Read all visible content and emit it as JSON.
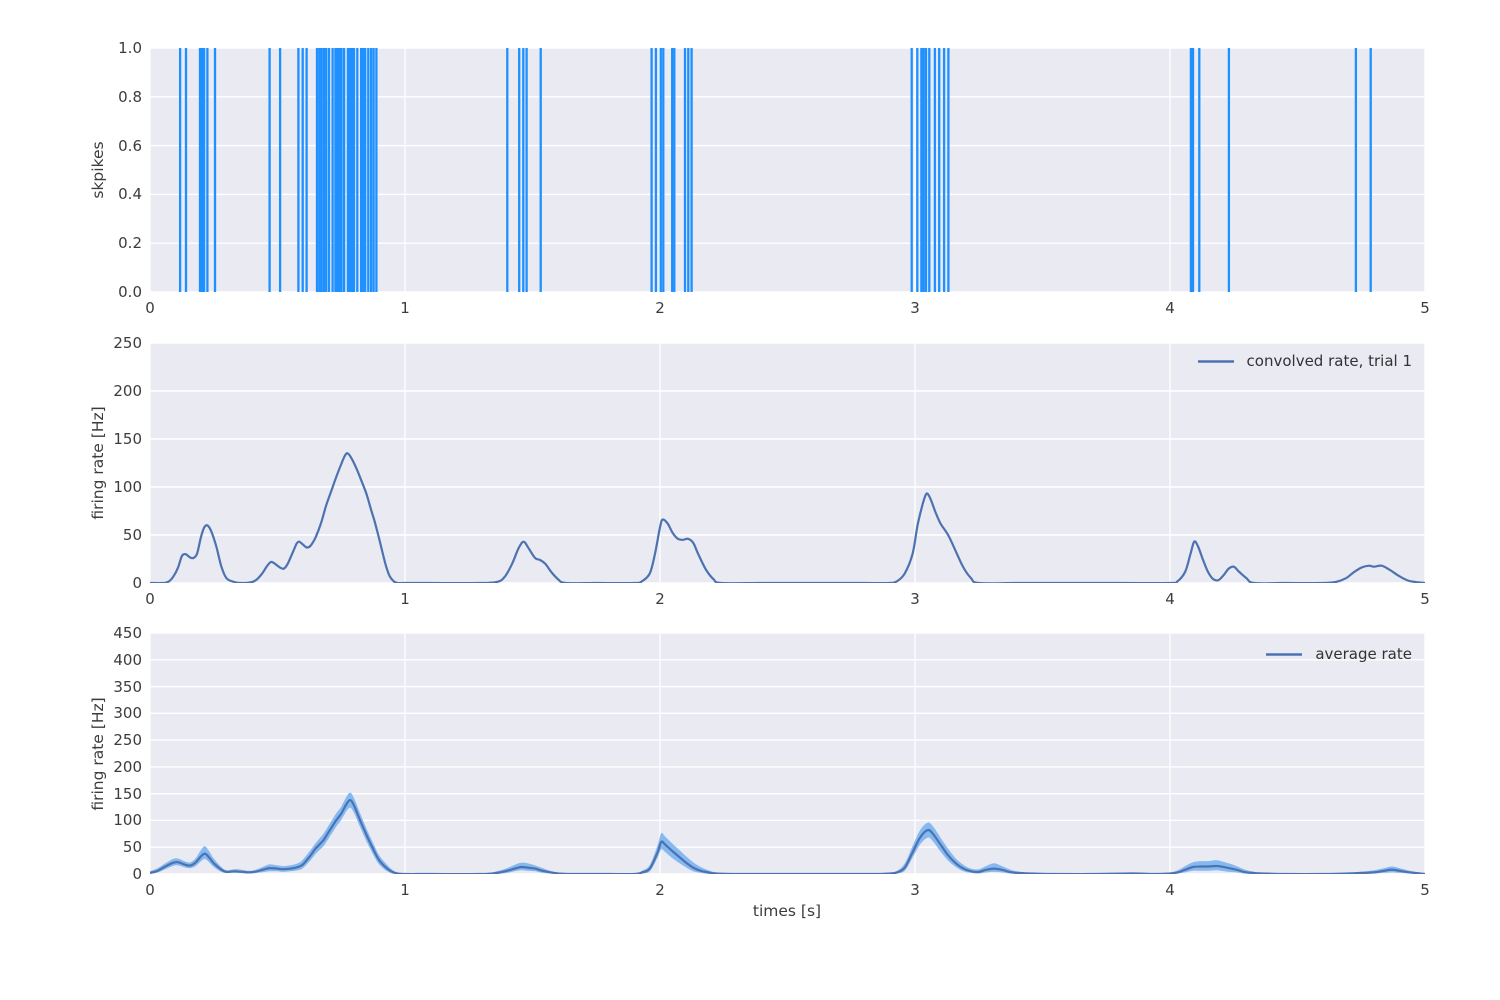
{
  "figure": {
    "background": "#ffffff",
    "axes_background": "#eaeaf2",
    "grid_color": "#ffffff",
    "text_color": "#3c3c3c"
  },
  "chart_data": [
    {
      "type": "eventplot",
      "title": "",
      "ylabel": "skpikes",
      "xlim": [
        0,
        5
      ],
      "ylim": [
        0,
        1
      ],
      "grid": true,
      "xtick_values": [
        0,
        1,
        2,
        3,
        4,
        5
      ],
      "xtick_labels": [
        "0",
        "1",
        "2",
        "3",
        "4",
        "5"
      ],
      "ytick_values": [
        0,
        0.2,
        0.4,
        0.6,
        0.8,
        1.0
      ],
      "ytick_labels": [
        "0.0",
        "0.2",
        "0.4",
        "0.6",
        "0.8",
        "1.0"
      ],
      "color": "#1e90ff",
      "spike_times": [
        0.118,
        0.141,
        0.196,
        0.204,
        0.212,
        0.225,
        0.255,
        0.469,
        0.51,
        0.582,
        0.599,
        0.614,
        0.655,
        0.664,
        0.673,
        0.682,
        0.691,
        0.702,
        0.716,
        0.727,
        0.735,
        0.743,
        0.751,
        0.761,
        0.776,
        0.784,
        0.792,
        0.8,
        0.813,
        0.828,
        0.836,
        0.844,
        0.856,
        0.867,
        0.877,
        0.888,
        1.401,
        1.448,
        1.464,
        1.477,
        1.532,
        1.967,
        1.984,
        2.003,
        2.013,
        2.048,
        2.056,
        2.098,
        2.111,
        2.124,
        2.987,
        3.009,
        3.025,
        3.034,
        3.043,
        3.056,
        3.078,
        3.095,
        3.114,
        3.131,
        4.082,
        4.09,
        4.115,
        4.231,
        4.729,
        4.787
      ]
    },
    {
      "type": "line",
      "legend": "convolved rate, trial 1",
      "legend_position": "upper right",
      "ylabel": "firing rate [Hz]",
      "xlim": [
        0,
        5
      ],
      "ylim": [
        0,
        250
      ],
      "grid": true,
      "xtick_values": [
        0,
        1,
        2,
        3,
        4,
        5
      ],
      "xtick_labels": [
        "0",
        "1",
        "2",
        "3",
        "4",
        "5"
      ],
      "ytick_values": [
        0,
        50,
        100,
        150,
        200,
        250
      ],
      "ytick_labels": [
        "0",
        "50",
        "100",
        "150",
        "200",
        "250"
      ],
      "color": "#4c72b0",
      "x": [
        0,
        0.05,
        0.07,
        0.09,
        0.11,
        0.125,
        0.14,
        0.155,
        0.17,
        0.185,
        0.2,
        0.213,
        0.225,
        0.24,
        0.26,
        0.28,
        0.3,
        0.33,
        0.36,
        0.4,
        0.42,
        0.44,
        0.46,
        0.475,
        0.49,
        0.51,
        0.525,
        0.54,
        0.56,
        0.575,
        0.585,
        0.6,
        0.615,
        0.63,
        0.65,
        0.67,
        0.69,
        0.71,
        0.73,
        0.75,
        0.765,
        0.775,
        0.79,
        0.81,
        0.83,
        0.85,
        0.865,
        0.88,
        0.895,
        0.91,
        0.925,
        0.94,
        0.955,
        0.97,
        1.0,
        1.1,
        1.3,
        1.36,
        1.39,
        1.42,
        1.445,
        1.465,
        1.485,
        1.51,
        1.53,
        1.55,
        1.575,
        1.6,
        1.63,
        1.75,
        1.9,
        1.93,
        1.96,
        1.98,
        2.0,
        2.01,
        2.03,
        2.05,
        2.07,
        2.09,
        2.11,
        2.13,
        2.15,
        2.18,
        2.21,
        2.24,
        2.4,
        2.6,
        2.8,
        2.9,
        2.93,
        2.96,
        2.99,
        3.01,
        3.03,
        3.045,
        3.06,
        3.08,
        3.1,
        3.13,
        3.16,
        3.19,
        3.22,
        3.25,
        3.4,
        3.6,
        3.8,
        4.0,
        4.03,
        4.06,
        4.08,
        4.095,
        4.11,
        4.13,
        4.15,
        4.17,
        4.19,
        4.21,
        4.23,
        4.25,
        4.27,
        4.3,
        4.33,
        4.45,
        4.6,
        4.65,
        4.69,
        4.72,
        4.75,
        4.78,
        4.8,
        4.83,
        4.86,
        4.9,
        4.94,
        5.0
      ],
      "y": [
        0,
        0,
        1,
        6,
        16,
        28,
        30,
        27,
        26,
        31,
        48,
        58,
        60,
        54,
        38,
        17,
        5,
        1,
        0,
        1,
        4,
        10,
        18,
        22,
        20,
        16,
        15,
        20,
        32,
        41,
        43,
        40,
        37,
        39,
        48,
        62,
        80,
        95,
        110,
        124,
        133,
        135,
        130,
        119,
        106,
        92,
        78,
        65,
        50,
        34,
        18,
        7,
        2,
        0,
        0,
        0,
        0,
        1,
        6,
        20,
        36,
        43,
        36,
        26,
        24,
        20,
        11,
        4,
        0,
        0,
        0,
        2,
        10,
        30,
        58,
        66,
        62,
        52,
        46,
        45,
        46,
        42,
        30,
        14,
        4,
        0,
        0,
        0,
        0,
        0,
        2,
        10,
        30,
        60,
        82,
        93,
        88,
        74,
        62,
        50,
        33,
        16,
        5,
        0,
        0,
        0,
        0,
        0,
        2,
        12,
        30,
        43,
        38,
        24,
        11,
        4,
        3,
        8,
        15,
        17,
        12,
        5,
        0,
        0,
        0,
        1,
        5,
        11,
        16,
        18,
        17,
        18,
        14,
        7,
        2,
        0
      ]
    },
    {
      "type": "line-band",
      "legend": "average rate",
      "legend_position": "upper right",
      "ylabel": "firing rate [Hz]",
      "xlabel": "times [s]",
      "xlim": [
        0,
        5
      ],
      "ylim": [
        0,
        450
      ],
      "grid": true,
      "xtick_values": [
        0,
        1,
        2,
        3,
        4,
        5
      ],
      "xtick_labels": [
        "0",
        "1",
        "2",
        "3",
        "4",
        "5"
      ],
      "ytick_values": [
        0,
        50,
        100,
        150,
        200,
        250,
        300,
        350,
        400,
        450
      ],
      "ytick_labels": [
        "0",
        "50",
        "100",
        "150",
        "200",
        "250",
        "300",
        "350",
        "400",
        "450"
      ],
      "line_color": "#4c72b0",
      "band_color": "#84b9f2",
      "x": [
        0,
        0.03,
        0.06,
        0.09,
        0.11,
        0.14,
        0.16,
        0.18,
        0.2,
        0.215,
        0.23,
        0.25,
        0.28,
        0.3,
        0.33,
        0.36,
        0.39,
        0.42,
        0.45,
        0.47,
        0.5,
        0.52,
        0.55,
        0.58,
        0.6,
        0.63,
        0.65,
        0.68,
        0.7,
        0.73,
        0.75,
        0.77,
        0.785,
        0.8,
        0.82,
        0.85,
        0.88,
        0.9,
        0.93,
        0.95,
        0.97,
        1.0,
        1.1,
        1.3,
        1.36,
        1.4,
        1.43,
        1.455,
        1.48,
        1.51,
        1.54,
        1.57,
        1.6,
        1.65,
        1.8,
        1.9,
        1.93,
        1.96,
        1.99,
        2.005,
        2.02,
        2.05,
        2.08,
        2.1,
        2.13,
        2.16,
        2.19,
        2.22,
        2.3,
        2.5,
        2.7,
        2.85,
        2.9,
        2.93,
        2.96,
        2.99,
        3.02,
        3.05,
        3.07,
        3.1,
        3.13,
        3.16,
        3.19,
        3.22,
        3.25,
        3.28,
        3.31,
        3.34,
        3.37,
        3.4,
        3.45,
        3.55,
        3.7,
        3.85,
        3.95,
        4.0,
        4.03,
        4.06,
        4.09,
        4.12,
        4.15,
        4.18,
        4.2,
        4.23,
        4.26,
        4.29,
        4.32,
        4.36,
        4.45,
        4.6,
        4.7,
        4.75,
        4.8,
        4.84,
        4.87,
        4.9,
        4.94,
        4.98,
        5.0
      ],
      "mean": [
        2,
        6,
        14,
        21,
        22,
        17,
        16,
        22,
        33,
        38,
        32,
        20,
        8,
        4,
        5,
        4,
        3,
        5,
        9,
        11,
        10,
        9,
        10,
        13,
        18,
        35,
        48,
        63,
        78,
        100,
        113,
        130,
        138,
        128,
        105,
        72,
        42,
        25,
        10,
        4,
        1,
        0,
        0,
        0,
        2,
        6,
        10,
        13,
        12,
        10,
        6,
        3,
        1,
        0,
        0,
        0,
        3,
        10,
        40,
        60,
        55,
        42,
        30,
        22,
        12,
        6,
        3,
        1,
        0,
        0,
        0,
        0,
        1,
        3,
        12,
        40,
        68,
        82,
        75,
        55,
        35,
        20,
        10,
        5,
        4,
        8,
        10,
        8,
        4,
        2,
        1,
        0,
        0,
        1,
        0,
        1,
        3,
        8,
        13,
        14,
        14,
        15,
        14,
        11,
        8,
        4,
        2,
        1,
        0,
        0,
        1,
        2,
        3,
        6,
        8,
        6,
        3,
        1,
        0
      ],
      "lo": [
        0,
        3,
        9,
        15,
        16,
        12,
        11,
        15,
        24,
        28,
        23,
        13,
        4,
        2,
        2,
        2,
        1,
        2,
        4,
        5,
        5,
        4,
        5,
        7,
        11,
        26,
        38,
        52,
        66,
        88,
        101,
        117,
        124,
        114,
        92,
        60,
        32,
        17,
        5,
        1,
        0,
        0,
        0,
        0,
        0,
        2,
        5,
        7,
        6,
        5,
        2,
        1,
        0,
        0,
        0,
        0,
        1,
        5,
        30,
        46,
        41,
        29,
        19,
        13,
        5,
        2,
        0,
        0,
        0,
        0,
        0,
        0,
        0,
        1,
        6,
        30,
        55,
        68,
        61,
        42,
        25,
        13,
        5,
        2,
        1,
        3,
        4,
        3,
        1,
        0,
        0,
        0,
        0,
        0,
        0,
        0,
        1,
        3,
        6,
        6,
        6,
        7,
        6,
        4,
        3,
        1,
        0,
        0,
        0,
        0,
        0,
        0,
        1,
        2,
        3,
        2,
        1,
        0,
        0
      ],
      "hi": [
        5,
        11,
        20,
        28,
        29,
        23,
        22,
        30,
        45,
        52,
        44,
        29,
        13,
        7,
        9,
        8,
        6,
        9,
        15,
        18,
        16,
        15,
        16,
        20,
        27,
        45,
        58,
        75,
        90,
        113,
        126,
        144,
        152,
        142,
        118,
        84,
        53,
        34,
        17,
        8,
        3,
        0,
        0,
        0,
        5,
        11,
        17,
        21,
        20,
        16,
        11,
        6,
        3,
        0,
        0,
        0,
        6,
        17,
        53,
        76,
        70,
        56,
        43,
        34,
        22,
        13,
        7,
        3,
        0,
        0,
        0,
        0,
        2,
        6,
        20,
        52,
        82,
        96,
        89,
        68,
        47,
        29,
        17,
        10,
        9,
        15,
        20,
        15,
        9,
        5,
        2,
        0,
        0,
        3,
        1,
        3,
        7,
        15,
        22,
        24,
        24,
        26,
        24,
        20,
        15,
        9,
        5,
        2,
        0,
        0,
        2,
        4,
        7,
        11,
        14,
        11,
        6,
        2,
        0
      ]
    }
  ]
}
